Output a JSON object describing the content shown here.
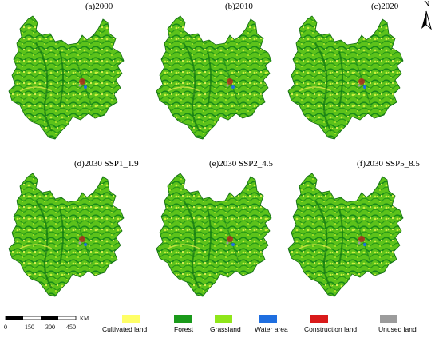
{
  "panels": [
    {
      "label": "(a)2000"
    },
    {
      "label": "(b)2010"
    },
    {
      "label": "(c)2020"
    },
    {
      "label": "(d)2030 SSP1_1.9"
    },
    {
      "label": "(e)2030 SSP2_4.5"
    },
    {
      "label": "(f)2030 SSP5_8.5"
    }
  ],
  "north_arrow": {
    "label": "N"
  },
  "scale_bar": {
    "unit": "KM",
    "ticks": [
      "0",
      "150",
      "300",
      "450"
    ]
  },
  "legend": [
    {
      "label": "Cultivated land",
      "color": "#ffff66"
    },
    {
      "label": "Forest",
      "color": "#1a9a1a"
    },
    {
      "label": "Grassland",
      "color": "#8fe61a"
    },
    {
      "label": "Water area",
      "color": "#1f6fe0"
    },
    {
      "label": "Construction land",
      "color": "#d91a1a"
    },
    {
      "label": "Unused land",
      "color": "#9c9c9c"
    }
  ]
}
